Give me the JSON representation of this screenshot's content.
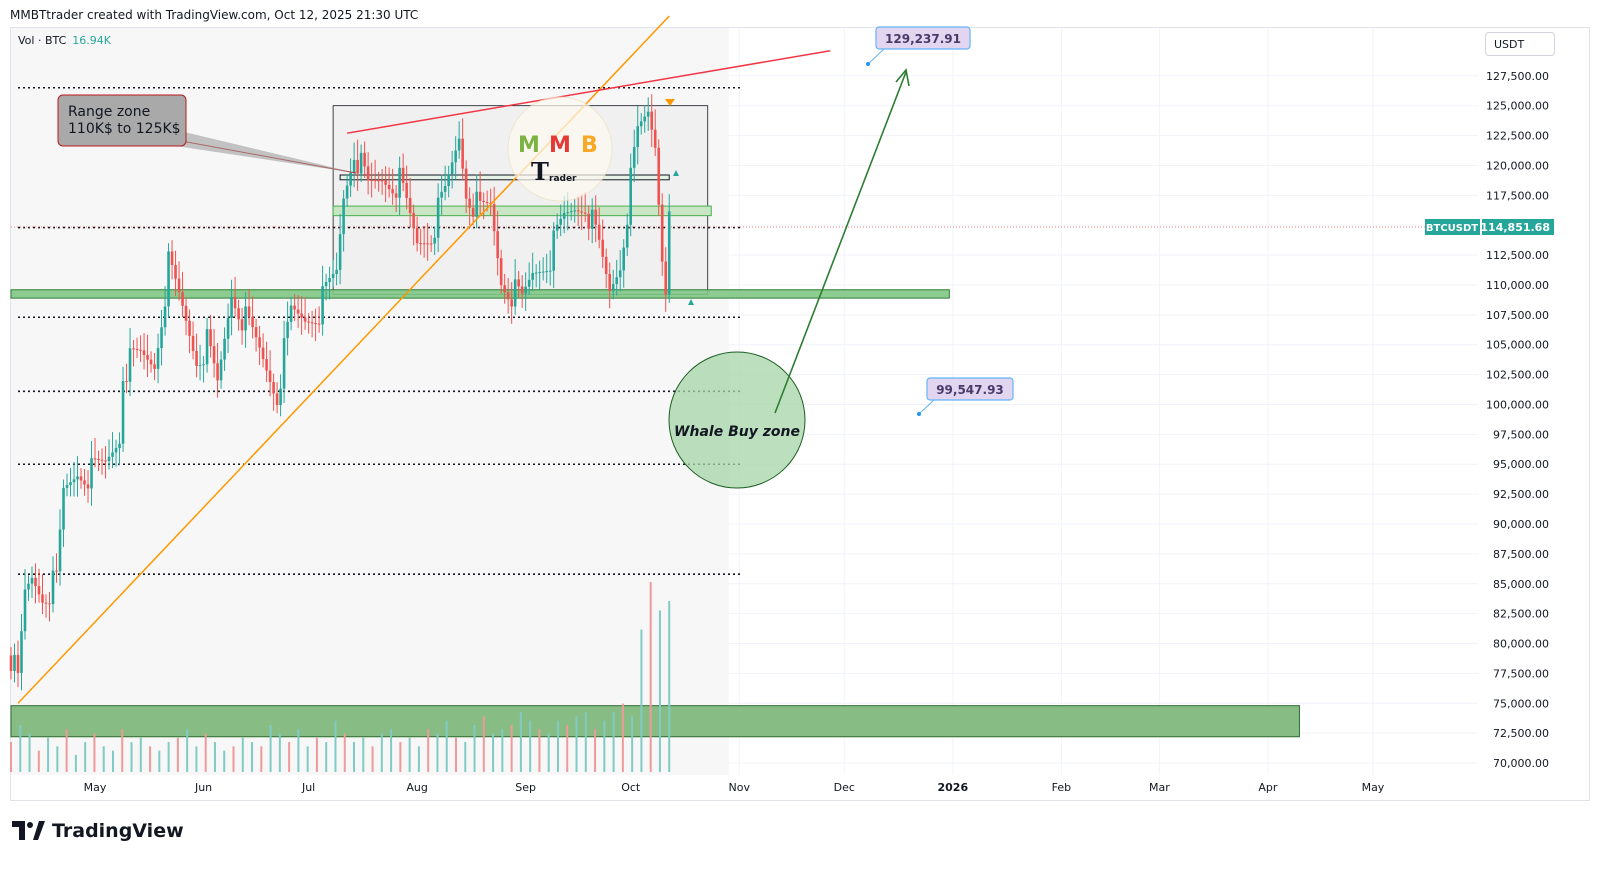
{
  "header": {
    "credit": "MMBTtrader created with TradingView.com, Oct 12, 2025 21:30 UTC"
  },
  "volume_legend": {
    "label": "Vol · BTC",
    "value": "16.94K"
  },
  "currency_button": "USDT",
  "footer": {
    "logo_text": "TradingView"
  },
  "chart_data": {
    "type": "candlestick",
    "symbol": "BTCUSDT",
    "last_price": 114851.68,
    "last_price_label": "114,851.68",
    "ylim": [
      69000,
      131500
    ],
    "y_ticks": [
      70000,
      72500,
      75000,
      77500,
      80000,
      82500,
      85000,
      87500,
      90000,
      92500,
      95000,
      97500,
      100000,
      102500,
      105000,
      107500,
      110000,
      112500,
      115000,
      117500,
      120000,
      122500,
      125000,
      127500
    ],
    "y_tick_labels": [
      "70,000.00",
      "72,500.00",
      "75,000.00",
      "77,500.00",
      "80,000.00",
      "82,500.00",
      "85,000.00",
      "87,500.00",
      "90,000.00",
      "92,500.00",
      "95,000.00",
      "97,500.00",
      "100,000.00",
      "102,500.00",
      "105,000.00",
      "107,500.00",
      "110,000.00",
      "112,500.00",
      "115,000.00",
      "117,500.00",
      "120,000.00",
      "122,500.00",
      "125,000.00",
      "127,500.00"
    ],
    "x_labels": [
      {
        "date": "2025-05-01",
        "label": "May"
      },
      {
        "date": "2025-06-01",
        "label": "Jun"
      },
      {
        "date": "2025-07-01",
        "label": "Jul"
      },
      {
        "date": "2025-08-01",
        "label": "Aug"
      },
      {
        "date": "2025-09-01",
        "label": "Sep"
      },
      {
        "date": "2025-10-01",
        "label": "Oct"
      },
      {
        "date": "2025-11-01",
        "label": "Nov"
      },
      {
        "date": "2025-12-01",
        "label": "Dec"
      },
      {
        "date": "2026-01-01",
        "label": "2026"
      },
      {
        "date": "2026-02-01",
        "label": "Feb"
      },
      {
        "date": "2026-03-01",
        "label": "Mar"
      },
      {
        "date": "2026-04-01",
        "label": "Apr"
      },
      {
        "date": "2026-05-01",
        "label": "May"
      }
    ],
    "x_range": [
      "2025-04-07",
      "2026-05-31"
    ],
    "price_path": [
      [
        "2025-04-07",
        79000
      ],
      [
        "2025-04-09",
        76500
      ],
      [
        "2025-04-11",
        84000
      ],
      [
        "2025-04-13",
        85500
      ],
      [
        "2025-04-16",
        84200
      ],
      [
        "2025-04-20",
        85000
      ],
      [
        "2025-04-22",
        92500
      ],
      [
        "2025-04-26",
        94500
      ],
      [
        "2025-04-30",
        94200
      ],
      [
        "2025-05-04",
        95000
      ],
      [
        "2025-05-08",
        97500
      ],
      [
        "2025-05-09",
        103000
      ],
      [
        "2025-05-14",
        104000
      ],
      [
        "2025-05-18",
        103500
      ],
      [
        "2025-05-21",
        109500
      ],
      [
        "2025-05-22",
        111500
      ],
      [
        "2025-05-26",
        108000
      ],
      [
        "2025-05-30",
        104000
      ],
      [
        "2025-06-02",
        105000
      ],
      [
        "2025-06-05",
        101500
      ],
      [
        "2025-06-09",
        109500
      ],
      [
        "2025-06-12",
        107500
      ],
      [
        "2025-06-17",
        104500
      ],
      [
        "2025-06-22",
        101000
      ],
      [
        "2025-06-26",
        107500
      ],
      [
        "2025-06-30",
        107200
      ],
      [
        "2025-07-04",
        108000
      ],
      [
        "2025-07-09",
        111000
      ],
      [
        "2025-07-11",
        117500
      ],
      [
        "2025-07-14",
        121500
      ],
      [
        "2025-07-18",
        118000
      ],
      [
        "2025-07-22",
        119000
      ],
      [
        "2025-07-27",
        118500
      ],
      [
        "2025-08-01",
        113500
      ],
      [
        "2025-08-05",
        114500
      ],
      [
        "2025-08-09",
        117500
      ],
      [
        "2025-08-13",
        122500
      ],
      [
        "2025-08-15",
        118000
      ],
      [
        "2025-08-19",
        116000
      ],
      [
        "2025-08-22",
        116500
      ],
      [
        "2025-08-25",
        110500
      ],
      [
        "2025-08-31",
        108500
      ],
      [
        "2025-09-03",
        111000
      ],
      [
        "2025-09-08",
        112500
      ],
      [
        "2025-09-12",
        115500
      ],
      [
        "2025-09-15",
        116500
      ],
      [
        "2025-09-18",
        117000
      ],
      [
        "2025-09-22",
        113000
      ],
      [
        "2025-09-25",
        109500
      ],
      [
        "2025-09-28",
        112000
      ],
      [
        "2025-10-01",
        118500
      ],
      [
        "2025-10-03",
        122500
      ],
      [
        "2025-10-06",
        124500
      ],
      [
        "2025-10-08",
        122000
      ],
      [
        "2025-10-10",
        113000
      ],
      [
        "2025-10-11",
        110500
      ],
      [
        "2025-10-12",
        114851
      ]
    ],
    "volume_pct": [
      0.35,
      0.55,
      0.45,
      0.25,
      0.4,
      0.3,
      0.5,
      0.2,
      0.35,
      0.45,
      0.3,
      0.25,
      0.5,
      0.35,
      0.4,
      0.3,
      0.25,
      0.35,
      0.4,
      0.5,
      0.3,
      0.45,
      0.35,
      0.25,
      0.3,
      0.4,
      0.35,
      0.3,
      0.55,
      0.45,
      0.35,
      0.5,
      0.3,
      0.4,
      0.35,
      0.6,
      0.45,
      0.35,
      0.4,
      0.3,
      0.45,
      0.5,
      0.35,
      0.4,
      0.3,
      0.5,
      0.45,
      0.6,
      0.4,
      0.35,
      0.55,
      0.65,
      0.45,
      0.5,
      0.55,
      0.7,
      0.6,
      0.5,
      0.45,
      0.6,
      0.55,
      0.65,
      0.7,
      0.5,
      0.6,
      0.7,
      0.8,
      0.65,
      0.75,
      1.0,
      0.85,
      0.9
    ],
    "dotted_levels": [
      126500,
      114800,
      107300,
      101100,
      95000,
      85800
    ],
    "zones": [
      {
        "name": "range-box",
        "from": "2025-07-08",
        "to": "2025-10-23",
        "low": 109200,
        "high": 125000
      },
      {
        "name": "upper-band",
        "from": "2025-07-10",
        "to": "2025-10-12",
        "low": 118800,
        "high": 119200
      },
      {
        "name": "mid-band",
        "from": "2025-07-08",
        "to": "2025-10-24",
        "low": 115800,
        "high": 116600
      },
      {
        "name": "support-band",
        "from": "2025-04-07",
        "to": "2025-12-31",
        "low": 108900,
        "high": 109600
      },
      {
        "name": "bottom-band",
        "from": "2025-04-07",
        "to": "2026-04-10",
        "low": 72200,
        "high": 74800
      }
    ],
    "trendlines": [
      {
        "name": "orange-trendline",
        "from": [
          "2025-04-09",
          75000
        ],
        "to": [
          "2025-10-12",
          132500
        ]
      },
      {
        "name": "red-resistance-line",
        "from": [
          "2025-07-12",
          122700
        ],
        "to": [
          "2025-11-27",
          129600
        ]
      }
    ],
    "annotations": {
      "range_zone": "Range zone\n110K$ to 125K$",
      "whale_zone": "Whale Buy zone",
      "target_high": "129,237.91",
      "target_low": "99,547.93"
    },
    "logo_text": [
      "M",
      "M",
      "B",
      "T",
      "rader"
    ]
  }
}
